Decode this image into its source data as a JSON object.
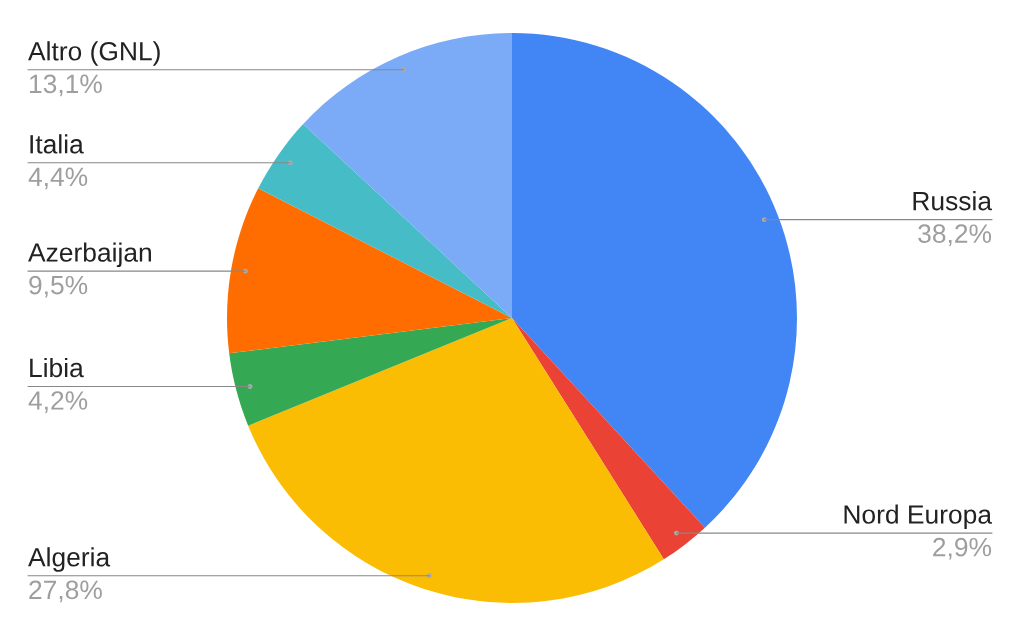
{
  "chart_data": {
    "type": "pie",
    "categories": [
      "Russia",
      "Nord Europa",
      "Algeria",
      "Libia",
      "Azerbaijan",
      "Italia",
      "Altro (GNL)"
    ],
    "values": [
      38.2,
      2.9,
      27.8,
      4.2,
      9.5,
      4.4,
      13.1
    ],
    "colors": [
      "#4285f4",
      "#ea4335",
      "#fbbc04",
      "#34a853",
      "#ff6d01",
      "#46bdc6",
      "#7baaf7"
    ],
    "value_labels": [
      "38,2%",
      "2,9%",
      "27,8%",
      "4,2%",
      "9,5%",
      "4,4%",
      "13,1%"
    ]
  }
}
